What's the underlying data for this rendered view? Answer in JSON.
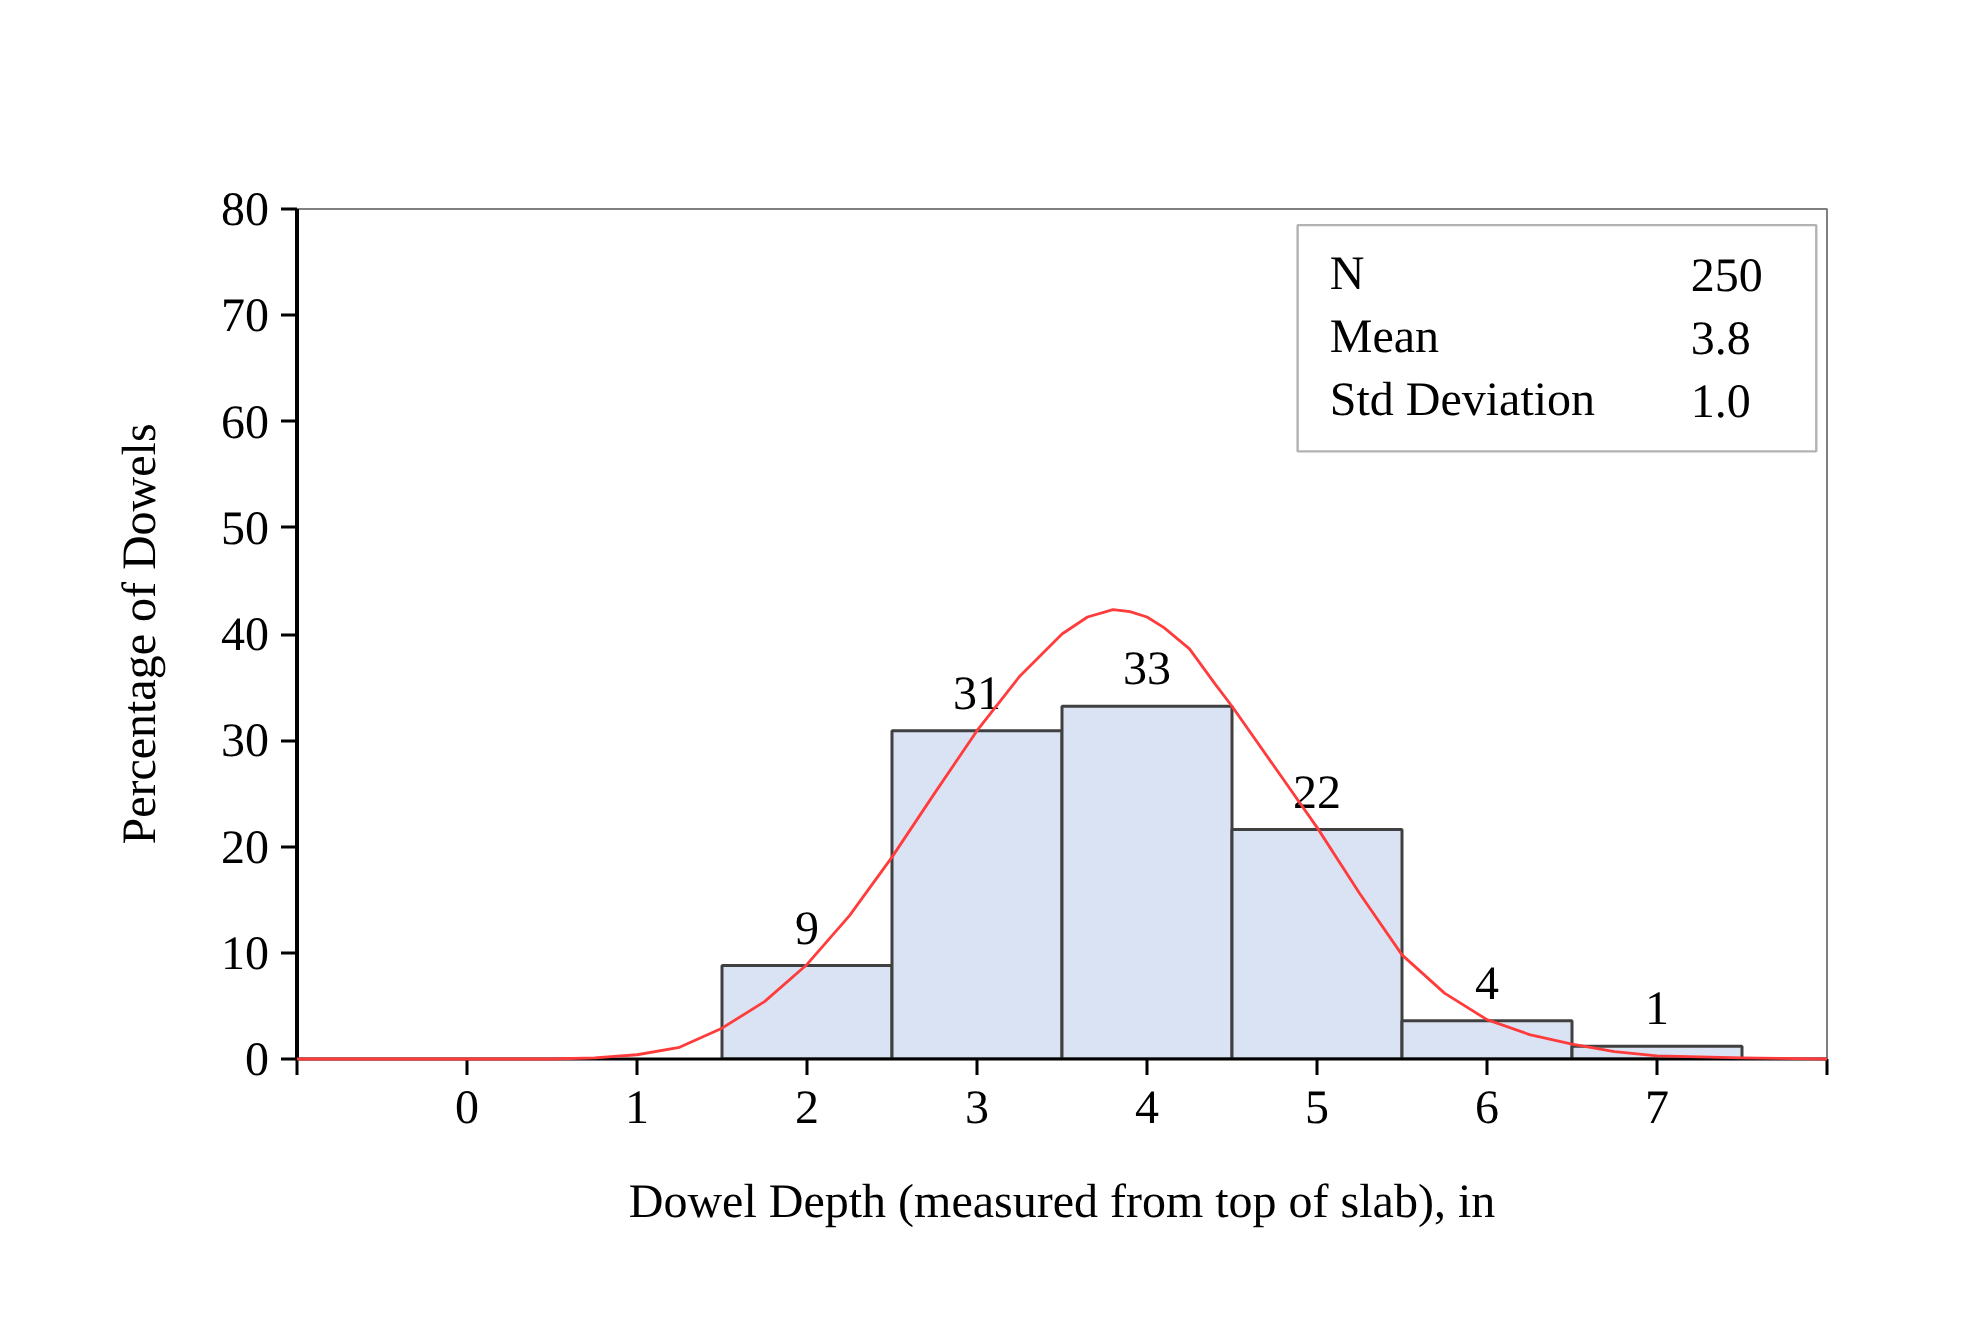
{
  "chart_data": {
    "type": "histogram",
    "xlabel": "Dowel Depth (measured from top of slab), in",
    "ylabel": "Percentage of Dowels",
    "bins": [
      1.5,
      2.5,
      3.5,
      4.5,
      5.5,
      6.5,
      7.5
    ],
    "values": [
      8.8,
      30.9,
      33.2,
      21.6,
      3.6,
      1.2
    ],
    "value_labels": [
      "9",
      "31",
      "33",
      "22",
      "4",
      "1"
    ],
    "color": "#dae3f3",
    "xlim": [
      -1,
      8
    ],
    "xticks": [
      {
        "value": -1,
        "label": null
      },
      0,
      1,
      2,
      3,
      4,
      5,
      6,
      7,
      {
        "value": 8,
        "label": null
      }
    ],
    "ylim": [
      0,
      80
    ],
    "yticks": [
      0,
      10,
      20,
      30,
      40,
      50,
      60,
      70,
      80
    ],
    "grid": false,
    "annotations": [
      "N",
      "250",
      "Mean",
      "3.8",
      "Std Deviation",
      "1.0"
    ],
    "series": [
      {
        "type": "line",
        "color": "#ff3b3b",
        "x": [
          -1,
          -0.5,
          0,
          0.25,
          0.5,
          0.75,
          1,
          1.25,
          1.5,
          1.75,
          2,
          2.25,
          2.5,
          2.75,
          3,
          3.25,
          3.5,
          3.65,
          3.8,
          3.9,
          4,
          4.1,
          4.25,
          4.4,
          4.5,
          4.75,
          5,
          5.25,
          5.5,
          5.75,
          6,
          6.25,
          6.5,
          6.75,
          7,
          7.5,
          8
        ],
        "values": [
          0,
          0,
          0,
          0,
          0,
          0.1,
          0.4,
          1.1,
          2.9,
          5.4,
          8.9,
          13.5,
          19.0,
          25.0,
          30.9,
          36.0,
          40.0,
          41.6,
          42.3,
          42.1,
          41.6,
          40.6,
          38.6,
          35.3,
          33.2,
          27.5,
          21.8,
          15.6,
          9.8,
          6.2,
          3.7,
          2.3,
          1.4,
          0.7,
          0.3,
          0.1,
          0
        ]
      }
    ]
  }
}
